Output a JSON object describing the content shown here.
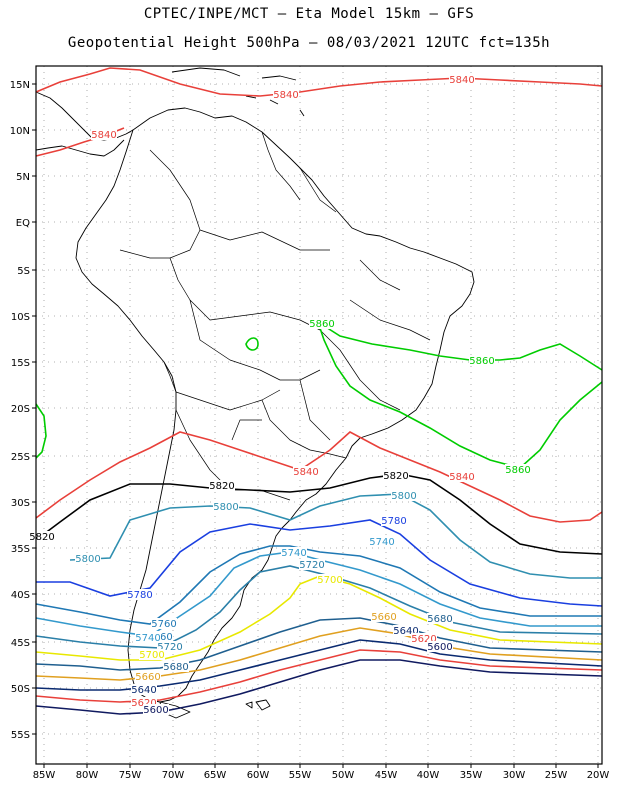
{
  "title_line1": "CPTEC/INPE/MCT –  Eta Model 15km – GFS",
  "title_line2": "Geopotential Height 500hPa – 08/03/2021 12UTC fct=135h",
  "lat_labels": [
    "15N",
    "10N",
    "5N",
    "EQ",
    "5S",
    "10S",
    "15S",
    "20S",
    "25S",
    "30S",
    "35S",
    "40S",
    "45S",
    "50S",
    "55S"
  ],
  "lon_labels": [
    "85W",
    "80W",
    "75W",
    "70W",
    "65W",
    "60W",
    "55W",
    "50W",
    "45W",
    "40W",
    "35W",
    "30W",
    "25W",
    "20W"
  ],
  "colors": {
    "c5860": "#00cc00",
    "c5840": "#e8403a",
    "c5820": "#000000",
    "c5800": "#2f8fb0",
    "c5780": "#1a3fe0",
    "c5760": "#1f78b4",
    "c5740": "#3399cc",
    "c5720": "#2a7fa8",
    "c5700": "#e8e800",
    "c5680": "#1f5f8f",
    "c5660": "#e0a020",
    "c5640": "#0a2a70",
    "c5620": "#e8403a",
    "c5600": "#101a60"
  },
  "contour_labels": [
    {
      "text": "5840",
      "color": "c5840"
    },
    {
      "text": "5840",
      "color": "c5840"
    },
    {
      "text": "5840",
      "color": "c5840"
    },
    {
      "text": "5860",
      "color": "c5860"
    },
    {
      "text": "5860",
      "color": "c5860"
    },
    {
      "text": "5860",
      "color": "c5860"
    },
    {
      "text": "5840",
      "color": "c5840"
    },
    {
      "text": "5840",
      "color": "c5840"
    },
    {
      "text": "5820",
      "color": "c5820"
    },
    {
      "text": "5820",
      "color": "c5820"
    },
    {
      "text": "5820",
      "color": "c5820"
    },
    {
      "text": "5800",
      "color": "c5800"
    },
    {
      "text": "5800",
      "color": "c5800"
    },
    {
      "text": "5800",
      "color": "c5800"
    },
    {
      "text": "5780",
      "color": "c5780"
    },
    {
      "text": "5780",
      "color": "c5780"
    },
    {
      "text": "5760",
      "color": "c5760"
    },
    {
      "text": "5760",
      "color": "c5760"
    },
    {
      "text": "5740",
      "color": "c5740"
    },
    {
      "text": "5740",
      "color": "c5740"
    },
    {
      "text": "5740",
      "color": "c5740"
    },
    {
      "text": "5720",
      "color": "c5720"
    },
    {
      "text": "5720",
      "color": "c5720"
    },
    {
      "text": "5700",
      "color": "c5700"
    },
    {
      "text": "5700",
      "color": "c5700"
    },
    {
      "text": "5680",
      "color": "c5680"
    },
    {
      "text": "5680",
      "color": "c5680"
    },
    {
      "text": "5660",
      "color": "c5660"
    },
    {
      "text": "5660",
      "color": "c5660"
    },
    {
      "text": "5640",
      "color": "c5640"
    },
    {
      "text": "5640",
      "color": "c5640"
    },
    {
      "text": "5620",
      "color": "c5620"
    },
    {
      "text": "5620",
      "color": "c5620"
    },
    {
      "text": "5600",
      "color": "c5600"
    },
    {
      "text": "5600",
      "color": "c5600"
    }
  ]
}
